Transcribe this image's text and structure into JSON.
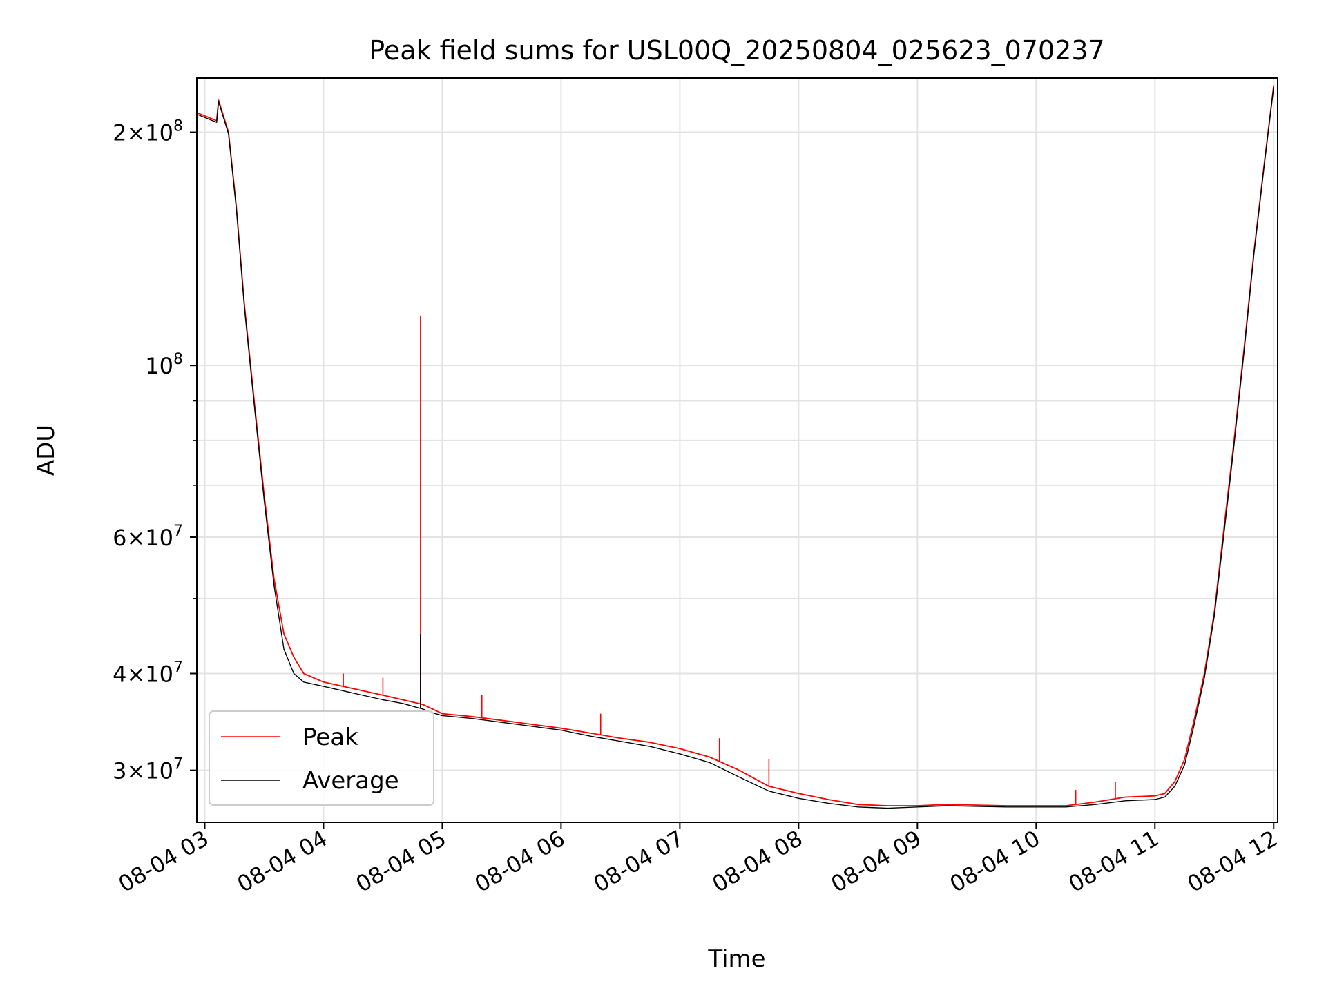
{
  "chart_data": {
    "type": "line",
    "title": "Peak field sums for USL00Q_20250804_025623_070237",
    "xlabel": "Time",
    "ylabel": "ADU",
    "yscale": "log",
    "grid": true,
    "legend_position": "lower-left",
    "xlim": [
      "2025-08-04 02:56",
      "2025-08-04 12:02"
    ],
    "ylim": [
      25700000,
      235000000
    ],
    "x_ticks": [
      "08-04 03",
      "08-04 04",
      "08-04 05",
      "08-04 06",
      "08-04 07",
      "08-04 08",
      "08-04 09",
      "08-04 10",
      "08-04 11",
      "08-04 12"
    ],
    "x_tick_times": [
      "2025-08-04 03:00",
      "2025-08-04 04:00",
      "2025-08-04 05:00",
      "2025-08-04 06:00",
      "2025-08-04 07:00",
      "2025-08-04 08:00",
      "2025-08-04 09:00",
      "2025-08-04 10:00",
      "2025-08-04 11:00",
      "2025-08-04 12:00"
    ],
    "y_major_ticks": [
      {
        "value": 30000000,
        "mant": "3",
        "exp": "7"
      },
      {
        "value": 40000000,
        "mant": "4",
        "exp": "7"
      },
      {
        "value": 60000000,
        "mant": "6",
        "exp": "7"
      },
      {
        "value": 100000000,
        "mant": "",
        "exp": "8"
      },
      {
        "value": 200000000,
        "mant": "2",
        "exp": "8"
      }
    ],
    "y_minor_ticks": [
      50000000,
      70000000,
      80000000,
      90000000
    ],
    "series": [
      {
        "name": "Peak",
        "color": "#ff0000",
        "x": [
          "2025-08-04 02:56",
          "2025-08-04 03:06",
          "2025-08-04 03:07",
          "2025-08-04 03:12",
          "2025-08-04 03:16",
          "03:20",
          "03:25",
          "03:30",
          "03:35",
          "03:40",
          "03:45",
          "03:50",
          "04:00",
          "04:30",
          "04:40",
          "04:50",
          "04:55",
          "05:00",
          "05:15",
          "05:30",
          "05:45",
          "06:00",
          "06:15",
          "06:30",
          "06:45",
          "07:00",
          "07:15",
          "07:30",
          "07:45",
          "08:00",
          "08:15",
          "08:30",
          "08:45",
          "09:00",
          "09:15",
          "09:30",
          "09:45",
          "10:00",
          "10:15",
          "10:30",
          "10:45",
          "11:00",
          "11:05",
          "11:10",
          "11:15",
          "11:20",
          "11:25",
          "11:30",
          "11:35",
          "11:40",
          "11:45",
          "11:50",
          "11:55",
          "12:00"
        ],
        "y": [
          212000000,
          207000000,
          220000000,
          200000000,
          160000000,
          120000000,
          90000000,
          68000000,
          53000000,
          45000000,
          42000000,
          40000000,
          39000000,
          37500000,
          37000000,
          36500000,
          36000000,
          35500000,
          35200000,
          34800000,
          34400000,
          34000000,
          33500000,
          33000000,
          32600000,
          32000000,
          31200000,
          30000000,
          28600000,
          28000000,
          27500000,
          27100000,
          27000000,
          27000000,
          27100000,
          27050000,
          27000000,
          27000000,
          27000000,
          27300000,
          27700000,
          27800000,
          28000000,
          29000000,
          31000000,
          35000000,
          40000000,
          48000000,
          62000000,
          80000000,
          105000000,
          140000000,
          180000000,
          230000000
        ],
        "spikes": [
          {
            "t": "04:49",
            "value": 116000000
          },
          {
            "t": "04:10",
            "value": 40000000
          },
          {
            "t": "04:30",
            "value": 39500000
          },
          {
            "t": "05:20",
            "value": 37500000
          },
          {
            "t": "06:20",
            "value": 35500000
          },
          {
            "t": "07:20",
            "value": 33000000
          },
          {
            "t": "07:45",
            "value": 31000000
          },
          {
            "t": "10:20",
            "value": 28300000
          },
          {
            "t": "10:40",
            "value": 29000000
          }
        ]
      },
      {
        "name": "Average",
        "color": "#000000",
        "x": [
          "2025-08-04 02:56",
          "2025-08-04 03:06",
          "2025-08-04 03:07",
          "2025-08-04 03:12",
          "2025-08-04 03:16",
          "03:20",
          "03:25",
          "03:30",
          "03:35",
          "03:40",
          "03:45",
          "03:50",
          "04:00",
          "04:30",
          "04:40",
          "04:50",
          "04:55",
          "05:00",
          "05:15",
          "05:30",
          "05:45",
          "06:00",
          "06:15",
          "06:30",
          "06:45",
          "07:00",
          "07:15",
          "07:30",
          "07:45",
          "08:00",
          "08:15",
          "08:30",
          "08:45",
          "09:00",
          "09:15",
          "09:30",
          "09:45",
          "10:00",
          "10:15",
          "10:30",
          "10:45",
          "11:00",
          "11:05",
          "11:10",
          "11:15",
          "11:20",
          "11:25",
          "11:30",
          "11:35",
          "11:40",
          "11:45",
          "11:50",
          "11:55",
          "12:00"
        ],
        "y": [
          211000000,
          206000000,
          219000000,
          199000000,
          159000000,
          119000000,
          89000000,
          67000000,
          52000000,
          43000000,
          40000000,
          39000000,
          38500000,
          37000000,
          36600000,
          36000000,
          35600000,
          35300000,
          35000000,
          34600000,
          34200000,
          33800000,
          33200000,
          32700000,
          32200000,
          31500000,
          30700000,
          29400000,
          28200000,
          27600000,
          27200000,
          26900000,
          26800000,
          26900000,
          27000000,
          26950000,
          26900000,
          26900000,
          26900000,
          27100000,
          27400000,
          27500000,
          27700000,
          28600000,
          30500000,
          34500000,
          39500000,
          47500000,
          61000000,
          79000000,
          104000000,
          139000000,
          179000000,
          229000000
        ],
        "spikes": [
          {
            "t": "04:49",
            "value": 45000000
          }
        ]
      }
    ]
  }
}
